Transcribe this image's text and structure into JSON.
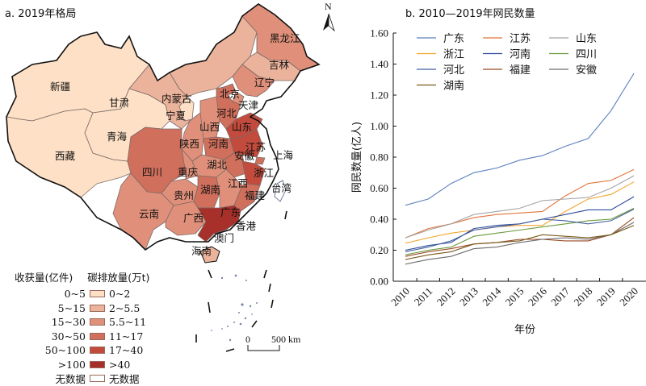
{
  "map": {
    "title": "a. 2019年格局",
    "north_label": "N",
    "scale": {
      "zero": "0",
      "distance": "500 km"
    },
    "legend": {
      "header_left": "收获量(亿件)",
      "header_right": "碳排放量(万t)",
      "classes": [
        {
          "left": "0~5",
          "right": "0~2",
          "color": "#fde0c5"
        },
        {
          "left": "5~15",
          "right": "2~5.5",
          "color": "#ebb39b"
        },
        {
          "left": "15~30",
          "right": "5.5~11",
          "color": "#e0907a"
        },
        {
          "left": "30~50",
          "right": "11~17",
          "color": "#d06f5c"
        },
        {
          "left": "50~100",
          "right": "17~40",
          "color": "#c24b3d"
        },
        {
          "left": ">100",
          "right": ">40",
          "color": "#a8302a"
        },
        {
          "left": "无数据",
          "right": "无数据",
          "color": "#ffffff"
        }
      ]
    },
    "provinces": [
      {
        "name": "新疆",
        "class": 0
      },
      {
        "name": "西藏",
        "class": 0
      },
      {
        "name": "青海",
        "class": 0
      },
      {
        "name": "甘肃",
        "class": 1
      },
      {
        "name": "内蒙古",
        "class": 1
      },
      {
        "name": "宁夏",
        "class": 0
      },
      {
        "name": "黑龙江",
        "class": 2
      },
      {
        "name": "吉林",
        "class": 1
      },
      {
        "name": "辽宁",
        "class": 2
      },
      {
        "name": "北京",
        "class": 3
      },
      {
        "name": "天津",
        "class": 2
      },
      {
        "name": "河北",
        "class": 3
      },
      {
        "name": "山西",
        "class": 2
      },
      {
        "name": "山东",
        "class": 4
      },
      {
        "name": "陕西",
        "class": 2
      },
      {
        "name": "河南",
        "class": 3
      },
      {
        "name": "江苏",
        "class": 4
      },
      {
        "name": "安徽",
        "class": 3
      },
      {
        "name": "上海",
        "class": 3
      },
      {
        "name": "湖北",
        "class": 2
      },
      {
        "name": "浙江",
        "class": 4
      },
      {
        "name": "四川",
        "class": 3
      },
      {
        "name": "重庆",
        "class": 2
      },
      {
        "name": "贵州",
        "class": 2
      },
      {
        "name": "湖南",
        "class": 3
      },
      {
        "name": "江西",
        "class": 2
      },
      {
        "name": "福建",
        "class": 3
      },
      {
        "name": "云南",
        "class": 2
      },
      {
        "name": "广西",
        "class": 2
      },
      {
        "name": "广东",
        "class": 5
      },
      {
        "name": "香港",
        "class": 6
      },
      {
        "name": "澳门",
        "class": 6
      },
      {
        "name": "台湾",
        "class": 6
      },
      {
        "name": "海南",
        "class": 1
      }
    ]
  },
  "chart_data": {
    "type": "line",
    "title": "b. 2010—2019年网民数量",
    "xlabel": "年份",
    "ylabel": "网民数量(亿人)",
    "x": [
      "2010",
      "2011",
      "2012",
      "2013",
      "2014",
      "2015",
      "2016",
      "2017",
      "2018",
      "2019",
      "2020"
    ],
    "ylim": [
      0,
      1.6
    ],
    "yticks": [
      "0.00",
      "0.20",
      "0.40",
      "0.60",
      "0.80",
      "1.00",
      "1.20",
      "1.40",
      "1.60"
    ],
    "grid": false,
    "legend_position": "top-left",
    "series": [
      {
        "name": "广东",
        "color": "#5b7fbf",
        "values": [
          0.49,
          0.53,
          0.63,
          0.7,
          0.73,
          0.78,
          0.81,
          0.87,
          0.92,
          1.1,
          1.34
        ]
      },
      {
        "name": "江苏",
        "color": "#e0743a",
        "values": [
          0.28,
          0.34,
          0.37,
          0.41,
          0.43,
          0.44,
          0.45,
          0.55,
          0.63,
          0.65,
          0.72
        ]
      },
      {
        "name": "山东",
        "color": "#a5a5a5",
        "values": [
          0.28,
          0.33,
          0.37,
          0.43,
          0.45,
          0.47,
          0.52,
          0.53,
          0.54,
          0.6,
          0.68
        ]
      },
      {
        "name": "浙江",
        "color": "#f2a52e",
        "values": [
          0.245,
          0.28,
          0.31,
          0.33,
          0.35,
          0.36,
          0.36,
          0.45,
          0.53,
          0.56,
          0.64
        ]
      },
      {
        "name": "河南",
        "color": "#2e4a9b",
        "values": [
          0.2,
          0.23,
          0.25,
          0.34,
          0.36,
          0.37,
          0.4,
          0.43,
          0.46,
          0.46,
          0.545
        ]
      },
      {
        "name": "四川",
        "color": "#6a9a3a",
        "values": [
          0.17,
          0.2,
          0.22,
          0.29,
          0.31,
          0.33,
          0.35,
          0.37,
          0.39,
          0.4,
          0.47
        ]
      },
      {
        "name": "河北",
        "color": "#44609e",
        "values": [
          0.19,
          0.22,
          0.26,
          0.33,
          0.35,
          0.37,
          0.4,
          0.39,
          0.37,
          0.39,
          0.465
        ]
      },
      {
        "name": "福建",
        "color": "#9a4a25",
        "values": [
          0.16,
          0.19,
          0.21,
          0.24,
          0.25,
          0.27,
          0.27,
          0.26,
          0.26,
          0.3,
          0.41
        ]
      },
      {
        "name": "安徽",
        "color": "#6e6a6a",
        "values": [
          0.11,
          0.14,
          0.16,
          0.21,
          0.22,
          0.25,
          0.27,
          0.28,
          0.27,
          0.3,
          0.38
        ]
      },
      {
        "name": "湖南",
        "color": "#7a5a1a",
        "values": [
          0.14,
          0.17,
          0.19,
          0.24,
          0.25,
          0.26,
          0.3,
          0.29,
          0.28,
          0.3,
          0.36
        ]
      }
    ]
  }
}
